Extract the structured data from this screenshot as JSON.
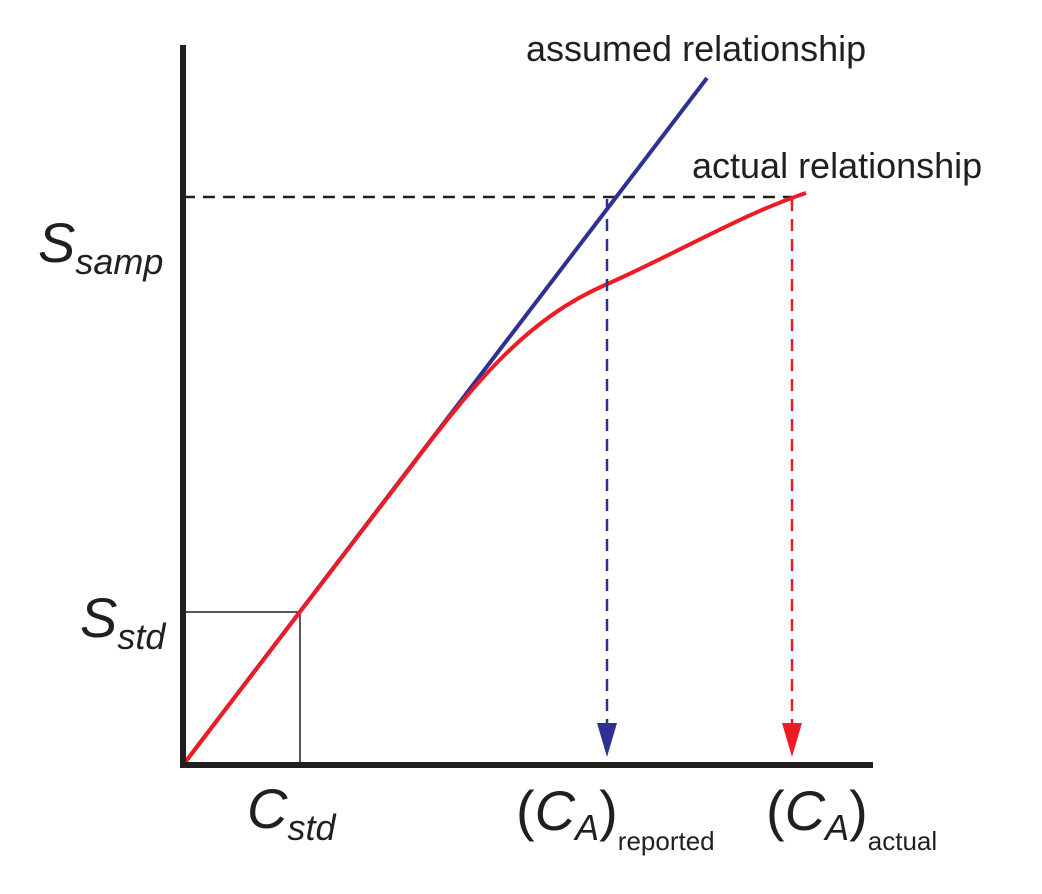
{
  "labels": {
    "assumed": "assumed relationship",
    "actual": "actual relationship",
    "s_samp": {
      "main": "S",
      "sub": "samp"
    },
    "s_std": {
      "main": "S",
      "sub": "std"
    },
    "c_std": {
      "main": "C",
      "sub": "std"
    },
    "ca_reported": {
      "open": "(",
      "main": "C",
      "inner_sub": "A",
      "close": ")",
      "sub": "reported"
    },
    "ca_actual": {
      "open": "(",
      "main": "C",
      "inner_sub": "A",
      "close": ")",
      "sub": "actual"
    }
  },
  "colors": {
    "axis": "#231f20",
    "assumed": "#2e3192",
    "actual": "#ed1c24",
    "guide": "#231f20"
  }
}
